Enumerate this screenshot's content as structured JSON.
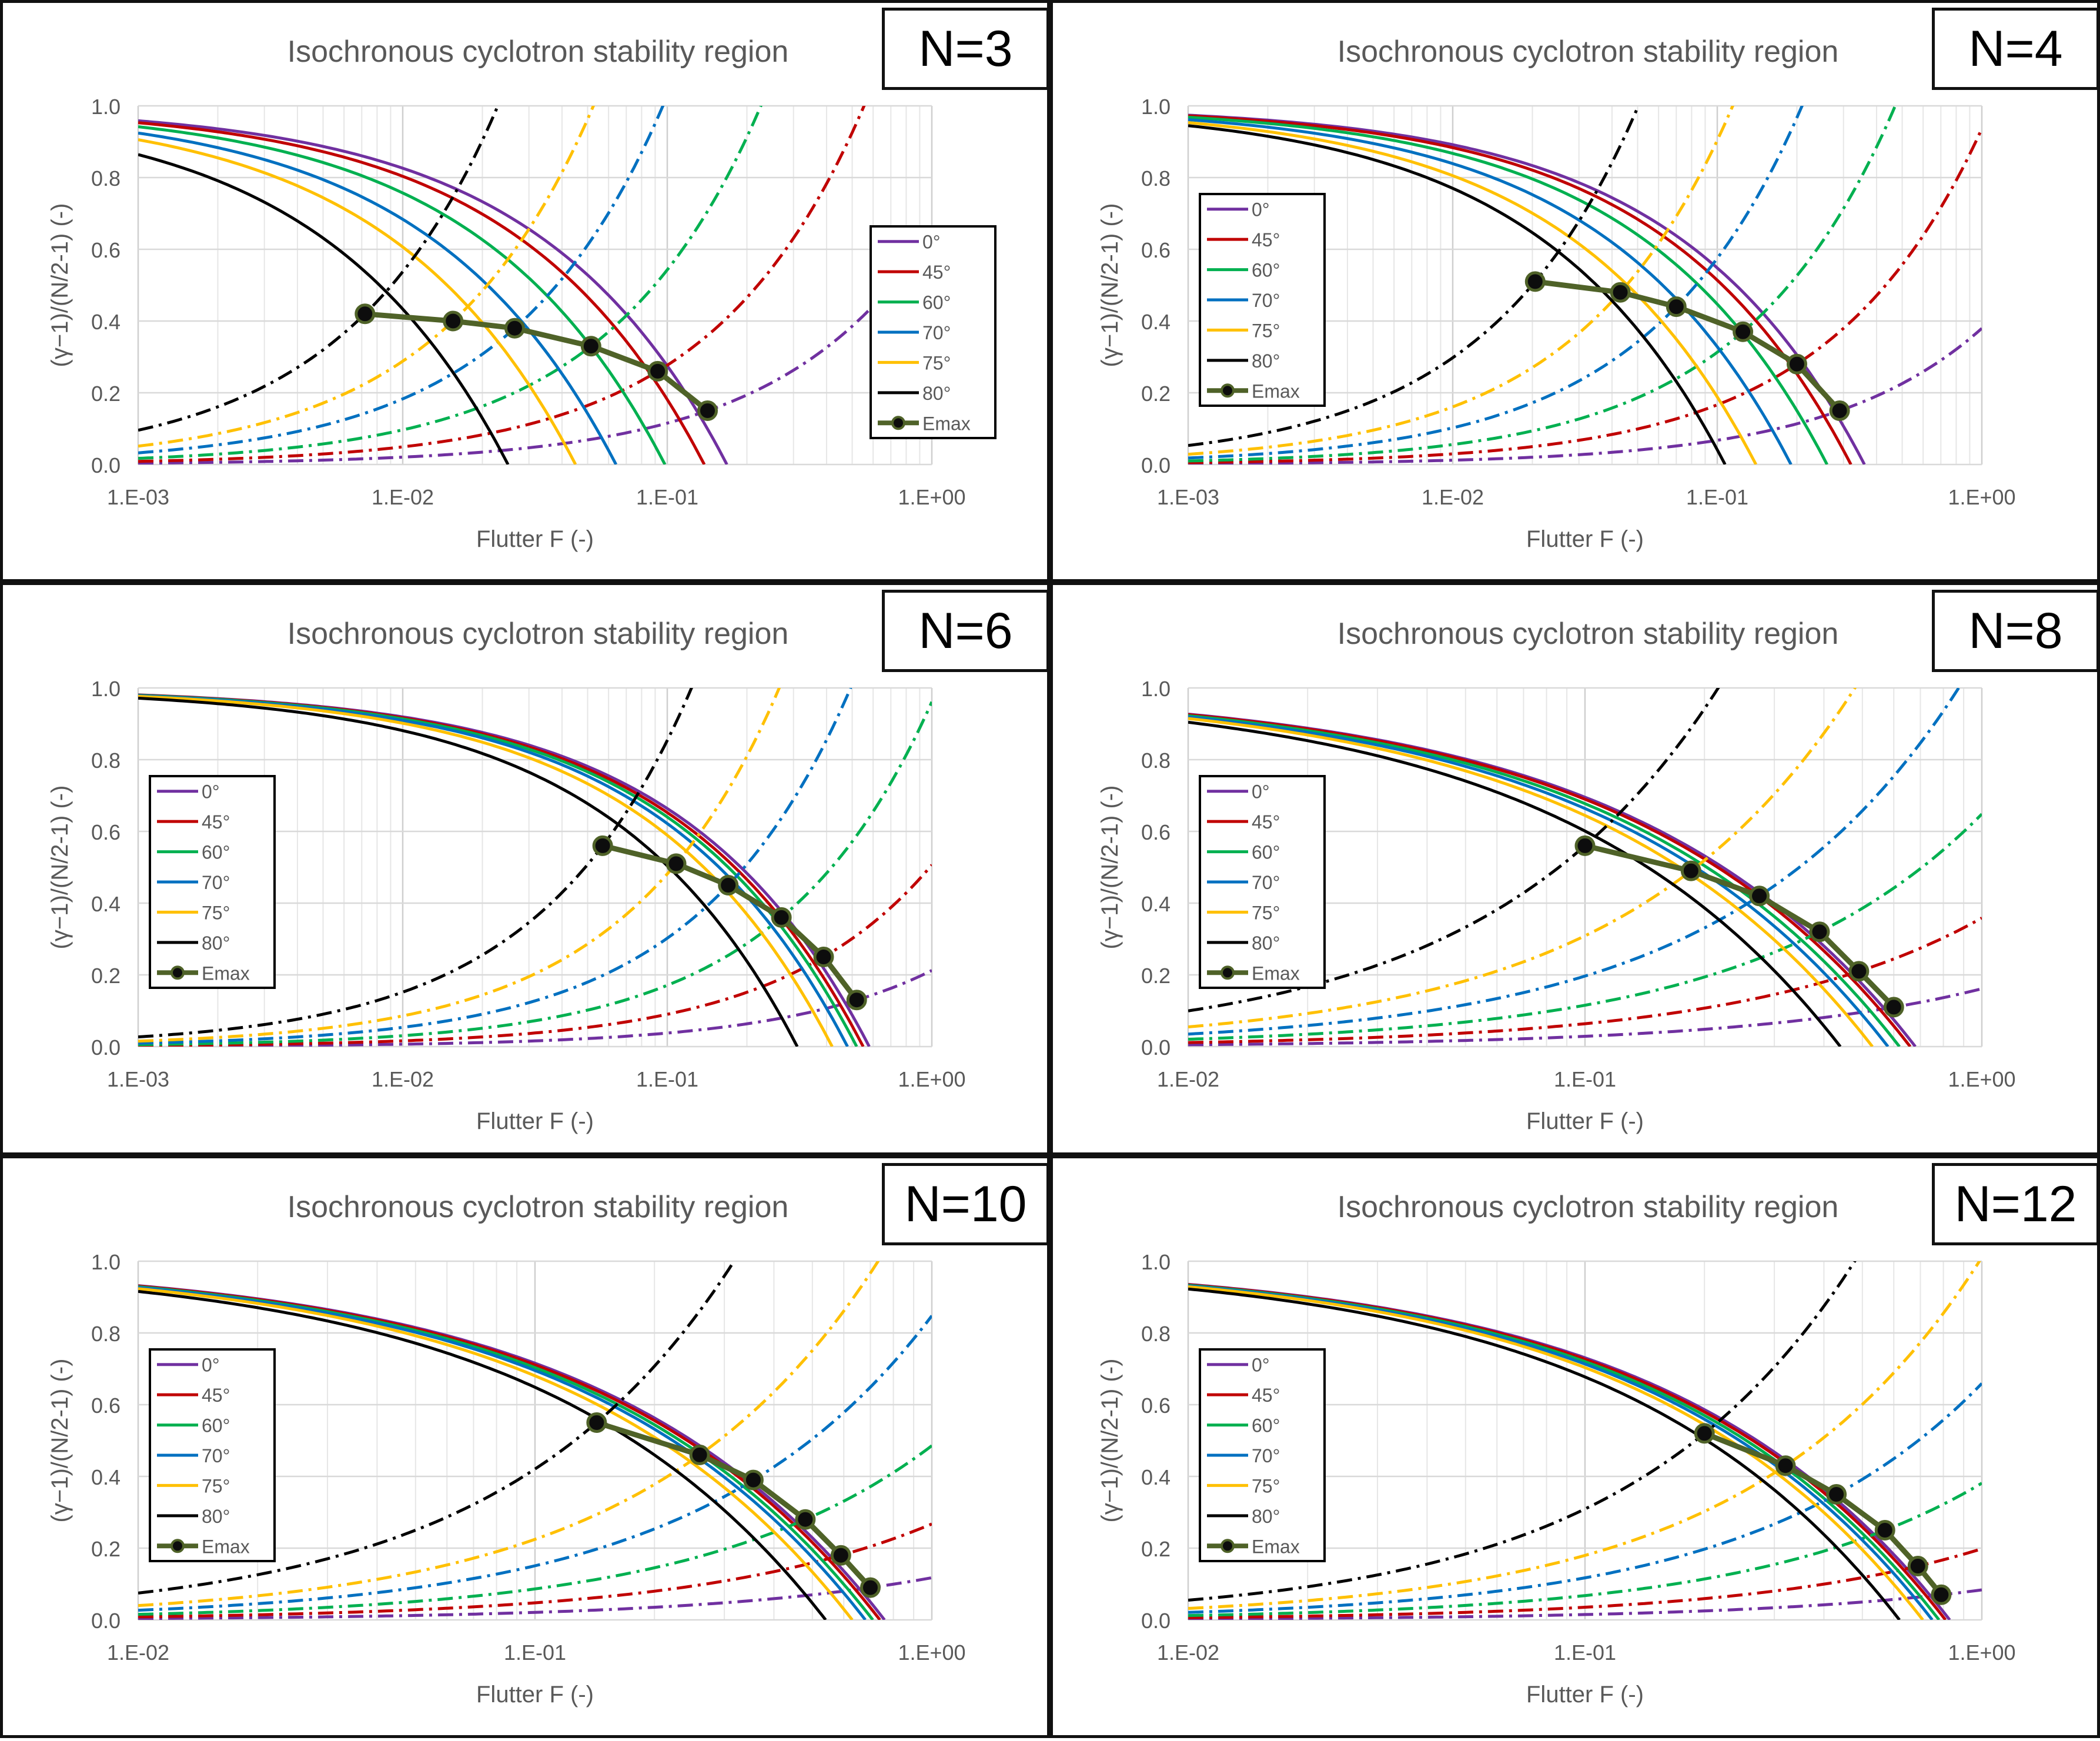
{
  "chart_data": [
    {
      "type": "line",
      "panel_label": "N=3",
      "N": 3,
      "title": "Isochronous  cyclotron stability region",
      "xlabel": "Flutter F  (-)",
      "ylabel": "(γ−1)/(N/2-1)  (-)",
      "xscale": "log",
      "xlim": [
        0.001,
        1
      ],
      "ylim": [
        0,
        1
      ],
      "x_ticks": [
        "1.E-03",
        "1.E-02",
        "1.E-01",
        "1.E+00"
      ],
      "y_ticks": [
        "0.0",
        "0.2",
        "0.4",
        "0.6",
        "0.8",
        "1.0"
      ],
      "legend_position": "right-middle",
      "series": [
        {
          "name": "0°",
          "color": "#7030A0",
          "solid_F0": 0.168
        },
        {
          "name": "45°",
          "color": "#C00000",
          "solid_F0": 0.138
        },
        {
          "name": "60°",
          "color": "#00B050",
          "solid_F0": 0.098
        },
        {
          "name": "70°",
          "color": "#0070C0",
          "solid_F0": 0.064
        },
        {
          "name": "75°",
          "color": "#FFC000",
          "solid_F0": 0.045
        },
        {
          "name": "80°",
          "color": "#000000",
          "solid_F0": 0.025
        }
      ],
      "emax_series": {
        "name": "Emax",
        "color": "#4F6228",
        "points": [
          [
            0.0072,
            0.42
          ],
          [
            0.0155,
            0.4
          ],
          [
            0.0265,
            0.38
          ],
          [
            0.0515,
            0.33
          ],
          [
            0.092,
            0.26
          ],
          [
            0.142,
            0.15
          ]
        ]
      }
    },
    {
      "type": "line",
      "panel_label": "N=4",
      "N": 4,
      "title": "Isochronous  cyclotron stability region",
      "xlabel": "Flutter F  (-)",
      "ylabel": "(γ−1)/(N/2-1)  (-)",
      "xscale": "log",
      "xlim": [
        0.001,
        1
      ],
      "ylim": [
        0,
        1
      ],
      "x_ticks": [
        "1.E-03",
        "1.E-02",
        "1.E-01",
        "1.E+00"
      ],
      "y_ticks": [
        "0.0",
        "0.2",
        "0.4",
        "0.6",
        "0.8",
        "1.0"
      ],
      "legend_position": "left-middle",
      "series": [
        {
          "name": "0°",
          "color": "#7030A0",
          "solid_F0": 0.36
        },
        {
          "name": "45°",
          "color": "#C00000",
          "solid_F0": 0.32
        },
        {
          "name": "60°",
          "color": "#00B050",
          "solid_F0": 0.26
        },
        {
          "name": "70°",
          "color": "#0070C0",
          "solid_F0": 0.19
        },
        {
          "name": "75°",
          "color": "#FFC000",
          "solid_F0": 0.14
        },
        {
          "name": "80°",
          "color": "#000000",
          "solid_F0": 0.107
        }
      ],
      "emax_series": {
        "name": "Emax",
        "color": "#4F6228",
        "points": [
          [
            0.0205,
            0.51
          ],
          [
            0.043,
            0.48
          ],
          [
            0.07,
            0.44
          ],
          [
            0.125,
            0.37
          ],
          [
            0.2,
            0.28
          ],
          [
            0.29,
            0.15
          ]
        ]
      }
    },
    {
      "type": "line",
      "panel_label": "N=6",
      "N": 6,
      "title": "Isochronous  cyclotron stability region",
      "xlabel": "Flutter F  (-)",
      "ylabel": "(γ−1)/(N/2-1)  (-)",
      "xscale": "log",
      "xlim": [
        0.001,
        1
      ],
      "ylim": [
        0,
        1
      ],
      "x_ticks": [
        "1.E-03",
        "1.E-02",
        "1.E-01",
        "1.E+00"
      ],
      "y_ticks": [
        "0.0",
        "0.2",
        "0.4",
        "0.6",
        "0.8",
        "1.0"
      ],
      "legend_position": "left-middle",
      "series": [
        {
          "name": "0°",
          "color": "#7030A0",
          "solid_F0": 0.58
        },
        {
          "name": "45°",
          "color": "#C00000",
          "solid_F0": 0.55
        },
        {
          "name": "60°",
          "color": "#00B050",
          "solid_F0": 0.52
        },
        {
          "name": "70°",
          "color": "#0070C0",
          "solid_F0": 0.48
        },
        {
          "name": "75°",
          "color": "#FFC000",
          "solid_F0": 0.42
        },
        {
          "name": "80°",
          "color": "#000000",
          "solid_F0": 0.31
        }
      ],
      "emax_series": {
        "name": "Emax",
        "color": "#4F6228",
        "points": [
          [
            0.057,
            0.56
          ],
          [
            0.108,
            0.51
          ],
          [
            0.17,
            0.45
          ],
          [
            0.27,
            0.36
          ],
          [
            0.39,
            0.25
          ],
          [
            0.52,
            0.13
          ]
        ]
      }
    },
    {
      "type": "line",
      "panel_label": "N=8",
      "N": 8,
      "title": "Isochronous  cyclotron stability region",
      "xlabel": "Flutter F  (-)",
      "ylabel": "(γ−1)/(N/2-1)  (-)",
      "xscale": "log",
      "xlim": [
        0.01,
        1
      ],
      "ylim": [
        0,
        1
      ],
      "x_ticks": [
        "1.E-02",
        "1.E-01",
        "1.E+00"
      ],
      "y_ticks": [
        "0.0",
        "0.2",
        "0.4",
        "0.6",
        "0.8",
        "1.0"
      ],
      "legend_position": "left-middle",
      "series": [
        {
          "name": "0°",
          "color": "#7030A0",
          "solid_F0": 0.68
        },
        {
          "name": "45°",
          "color": "#C00000",
          "solid_F0": 0.66
        },
        {
          "name": "60°",
          "color": "#00B050",
          "solid_F0": 0.62
        },
        {
          "name": "70°",
          "color": "#0070C0",
          "solid_F0": 0.58
        },
        {
          "name": "75°",
          "color": "#FFC000",
          "solid_F0": 0.53
        },
        {
          "name": "80°",
          "color": "#000000",
          "solid_F0": 0.44
        }
      ],
      "emax_series": {
        "name": "Emax",
        "color": "#4F6228",
        "points": [
          [
            0.1,
            0.56
          ],
          [
            0.185,
            0.49
          ],
          [
            0.275,
            0.42
          ],
          [
            0.39,
            0.32
          ],
          [
            0.49,
            0.21
          ],
          [
            0.6,
            0.11
          ]
        ]
      }
    },
    {
      "type": "line",
      "panel_label": "N=10",
      "N": 10,
      "title": "Isochronous  cyclotron stability region",
      "xlabel": "Flutter F  (-)",
      "ylabel": "(γ−1)/(N/2-1)  (-)",
      "xscale": "log",
      "xlim": [
        0.01,
        1
      ],
      "ylim": [
        0,
        1
      ],
      "x_ticks": [
        "1.E-02",
        "1.E-01",
        "1.E+00"
      ],
      "y_ticks": [
        "0.0",
        "0.2",
        "0.4",
        "0.6",
        "0.8",
        "1.0"
      ],
      "legend_position": "left-middle",
      "series": [
        {
          "name": "0°",
          "color": "#7030A0",
          "solid_F0": 0.76
        },
        {
          "name": "45°",
          "color": "#C00000",
          "solid_F0": 0.74
        },
        {
          "name": "60°",
          "color": "#00B050",
          "solid_F0": 0.71
        },
        {
          "name": "70°",
          "color": "#0070C0",
          "solid_F0": 0.68
        },
        {
          "name": "75°",
          "color": "#FFC000",
          "solid_F0": 0.63
        },
        {
          "name": "80°",
          "color": "#000000",
          "solid_F0": 0.54
        }
      ],
      "emax_series": {
        "name": "Emax",
        "color": "#4F6228",
        "points": [
          [
            0.143,
            0.55
          ],
          [
            0.26,
            0.46
          ],
          [
            0.355,
            0.39
          ],
          [
            0.48,
            0.28
          ],
          [
            0.59,
            0.18
          ],
          [
            0.7,
            0.09
          ]
        ]
      }
    },
    {
      "type": "line",
      "panel_label": "N=12",
      "N": 12,
      "title": "Isochronous  cyclotron stability region",
      "xlabel": "Flutter F  (-)",
      "ylabel": "(γ−1)/(N/2-1)  (-)",
      "xscale": "log",
      "xlim": [
        0.01,
        1
      ],
      "ylim": [
        0,
        1
      ],
      "x_ticks": [
        "1.E-02",
        "1.E-01",
        "1.E+00"
      ],
      "y_ticks": [
        "0.0",
        "0.2",
        "0.4",
        "0.6",
        "0.8",
        "1.0"
      ],
      "legend_position": "left-middle",
      "series": [
        {
          "name": "0°",
          "color": "#7030A0",
          "solid_F0": 0.83
        },
        {
          "name": "45°",
          "color": "#C00000",
          "solid_F0": 0.81
        },
        {
          "name": "60°",
          "color": "#00B050",
          "solid_F0": 0.78
        },
        {
          "name": "70°",
          "color": "#0070C0",
          "solid_F0": 0.75
        },
        {
          "name": "75°",
          "color": "#FFC000",
          "solid_F0": 0.71
        },
        {
          "name": "80°",
          "color": "#000000",
          "solid_F0": 0.62
        }
      ],
      "emax_series": {
        "name": "Emax",
        "color": "#4F6228",
        "points": [
          [
            0.2,
            0.52
          ],
          [
            0.32,
            0.43
          ],
          [
            0.43,
            0.35
          ],
          [
            0.57,
            0.25
          ],
          [
            0.69,
            0.15
          ],
          [
            0.79,
            0.07
          ]
        ]
      }
    }
  ]
}
